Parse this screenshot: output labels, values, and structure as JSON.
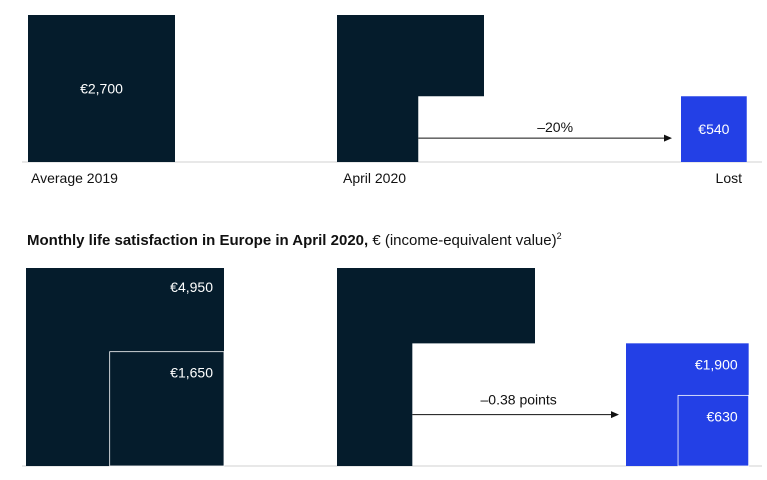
{
  "colors": {
    "dark": "#051c2c",
    "accent": "#2340e6",
    "axis": "#d0d0d0",
    "text": "#111111",
    "light_text": "#ffffff"
  },
  "chart_data": [
    {
      "type": "bar",
      "title": "",
      "categories": [
        "Average 2019",
        "April 2020",
        "Lost"
      ],
      "values": [
        2700,
        2160,
        540
      ],
      "value_labels": [
        "€2,700",
        "",
        "€540"
      ],
      "annotation": "–20%",
      "xlabel": "",
      "ylabel": ""
    },
    {
      "type": "bar",
      "title": "Monthly life satisfaction in Europe in April 2020,",
      "title_suffix": "€ (income-equivalent value)",
      "title_footnote": "2",
      "categories": [
        "",
        "",
        ""
      ],
      "values": [
        4950,
        3050,
        1900
      ],
      "value_labels": [
        "€4,950",
        "",
        "€1,900"
      ],
      "inner_values": [
        1650,
        1020,
        630
      ],
      "inner_value_labels": [
        "€1,650",
        "",
        "€630"
      ],
      "annotation": "–0.38 points",
      "xlabel": "",
      "ylabel": ""
    }
  ]
}
